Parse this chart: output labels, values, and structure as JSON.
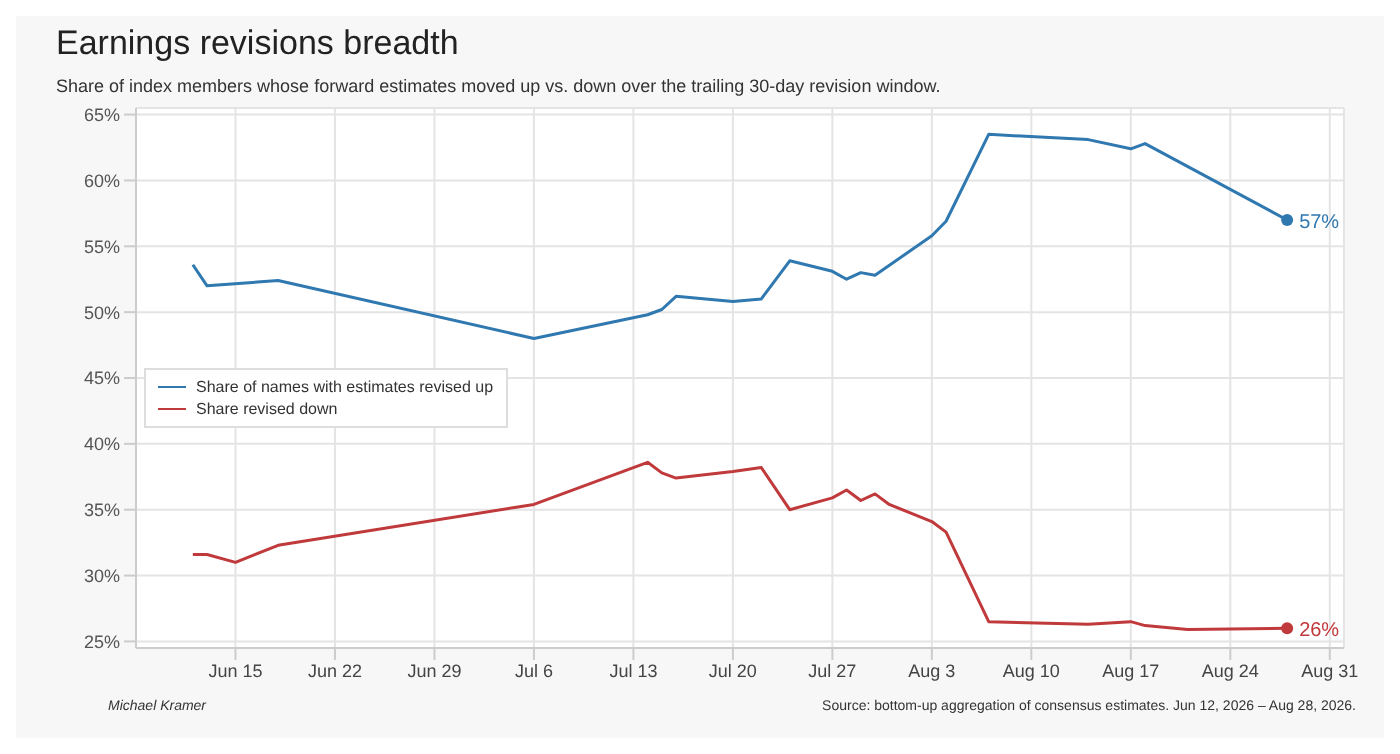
{
  "chart_data": {
    "type": "line",
    "title": "Earnings revisions breadth",
    "subtitle": "Share of index members whose forward estimates moved up vs. down over the trailing 30-day revision window.",
    "x": [
      "2026-06-12",
      "2026-06-13",
      "2026-06-15",
      "2026-06-18",
      "2026-07-06",
      "2026-07-14",
      "2026-07-15",
      "2026-07-16",
      "2026-07-20",
      "2026-07-22",
      "2026-07-24",
      "2026-07-27",
      "2026-07-28",
      "2026-07-29",
      "2026-07-30",
      "2026-07-31",
      "2026-08-03",
      "2026-08-04",
      "2026-08-07",
      "2026-08-14",
      "2026-08-17",
      "2026-08-18",
      "2026-08-21",
      "2026-08-28"
    ],
    "series": [
      {
        "name": "Share of names with estimates revised up",
        "color": "#2f78b0",
        "values": [
          53.6,
          52.0,
          null,
          52.4,
          48.0,
          49.8,
          50.2,
          51.2,
          50.8,
          51.0,
          53.9,
          53.1,
          52.5,
          53.0,
          52.8,
          null,
          55.8,
          56.9,
          63.5,
          63.1,
          62.4,
          62.8,
          null,
          57
        ],
        "value_labels": [
          null,
          null,
          null,
          null,
          null,
          null,
          null,
          null,
          null,
          null,
          null,
          null,
          null,
          null,
          null,
          null,
          null,
          null,
          null,
          null,
          null,
          null,
          null,
          "57%"
        ]
      },
      {
        "name": "Share revised down",
        "color": "#c0393b",
        "values": [
          31.6,
          31.6,
          31.0,
          32.3,
          35.4,
          38.6,
          37.8,
          37.4,
          37.9,
          38.2,
          35.0,
          35.9,
          36.5,
          35.7,
          36.2,
          35.4,
          34.1,
          33.3,
          26.5,
          26.3,
          26.5,
          26.2,
          25.9,
          26
        ],
        "value_labels": [
          null,
          null,
          null,
          null,
          null,
          null,
          null,
          null,
          null,
          null,
          null,
          null,
          null,
          null,
          null,
          null,
          null,
          null,
          null,
          null,
          null,
          null,
          null,
          "26%"
        ]
      }
    ],
    "xlim": [
      "2026-06-08",
      "2026-09-01"
    ],
    "xticks": [
      {
        "value": "2026-06-15",
        "label": "Jun 15"
      },
      {
        "value": "2026-06-22",
        "label": "Jun 22"
      },
      {
        "value": "2026-06-29",
        "label": "Jun 29"
      },
      {
        "value": "2026-07-06",
        "label": "Jul 6"
      },
      {
        "value": "2026-07-13",
        "label": "Jul 13"
      },
      {
        "value": "2026-07-20",
        "label": "Jul 20"
      },
      {
        "value": "2026-07-27",
        "label": "Jul 27"
      },
      {
        "value": "2026-08-03",
        "label": "Aug 3"
      },
      {
        "value": "2026-08-10",
        "label": "Aug 10"
      },
      {
        "value": "2026-08-17",
        "label": "Aug 17"
      },
      {
        "value": "2026-08-24",
        "label": "Aug 24"
      },
      {
        "value": "2026-08-31",
        "label": "Aug 31"
      }
    ],
    "ylim": [
      24.5,
      65.5
    ],
    "yticks": [
      {
        "value": 25,
        "label": "25%"
      },
      {
        "value": 30,
        "label": "30%"
      },
      {
        "value": 35,
        "label": "35%"
      },
      {
        "value": 40,
        "label": "40%"
      },
      {
        "value": 45,
        "label": "45%"
      },
      {
        "value": 50,
        "label": "50%"
      },
      {
        "value": 55,
        "label": "55%"
      },
      {
        "value": 60,
        "label": "60%"
      },
      {
        "value": 65,
        "label": "65%"
      }
    ],
    "grid": true,
    "legend": "left",
    "marker": "none",
    "line_style": "solid",
    "annotations": [
      "Michael Kramer",
      "Source: bottom-up aggregation of consensus estimates. Jun 12, 2026 – Aug 28, 2026."
    ]
  }
}
